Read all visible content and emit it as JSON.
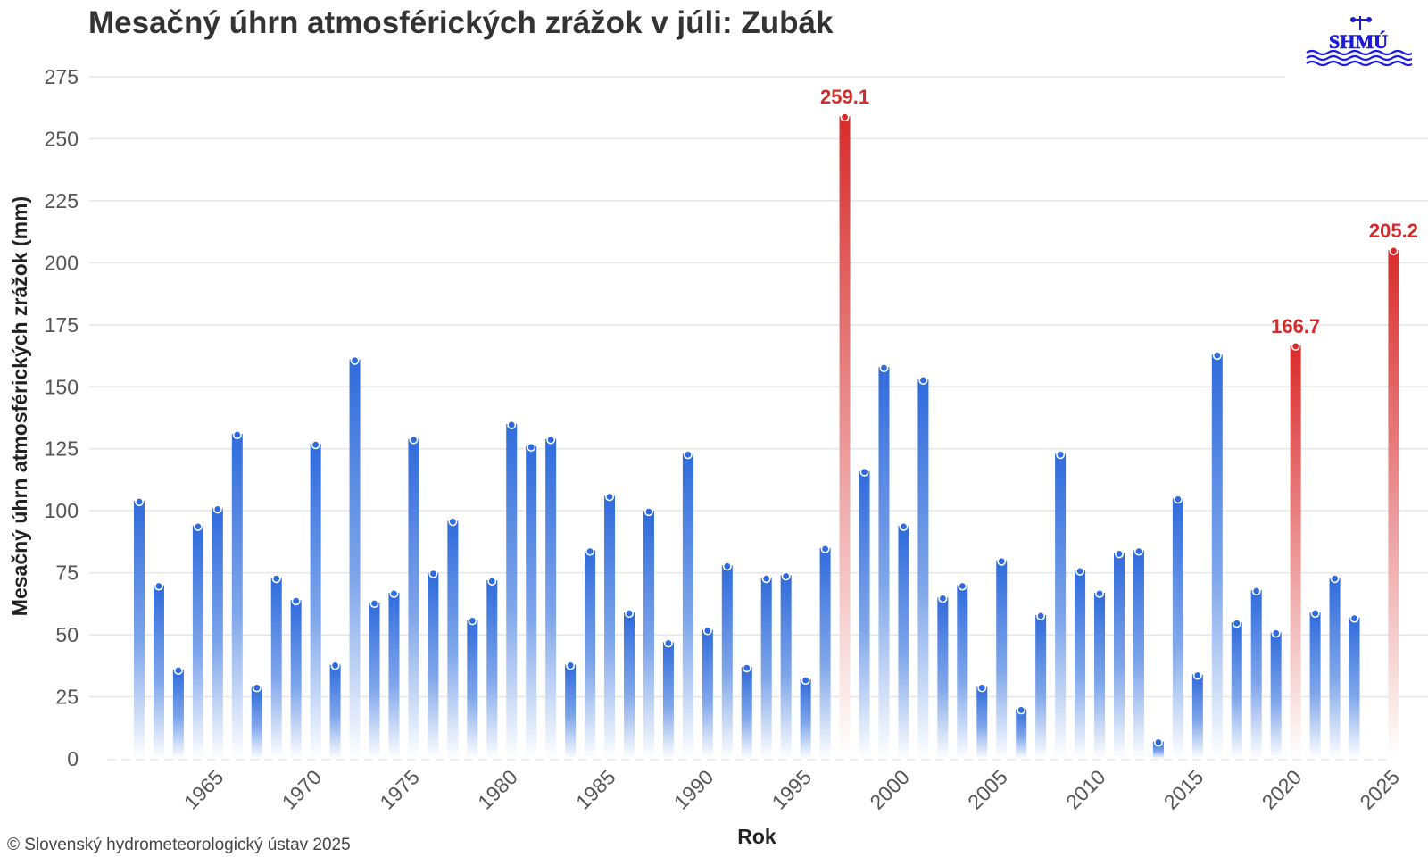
{
  "header": {
    "title": "Mesačný úhrn atmosférických zrážok v júli: Zubák",
    "logo_text": "SHMÚ"
  },
  "footer": {
    "copyright": "© Slovenský hydrometeorologický ústav 2025"
  },
  "colors": {
    "normal_bar": "#2f6bdc",
    "highlight_bar": "#d92b2b",
    "highlight_label": "#d62a2a",
    "logo": "#1a1adb"
  },
  "chart_data": {
    "type": "bar",
    "title": "Mesačný úhrn atmosférických zrážok v júli: Zubák",
    "xlabel": "Rok",
    "ylabel": "Mesačný úhrn atmosférických zrážok (mm)",
    "ylim": [
      0,
      275
    ],
    "yticks": [
      0,
      25,
      50,
      75,
      100,
      125,
      150,
      175,
      200,
      225,
      250,
      275
    ],
    "xticks": [
      1965,
      1970,
      1975,
      1980,
      1985,
      1990,
      1995,
      2000,
      2005,
      2010,
      2015,
      2020,
      2025
    ],
    "grid": true,
    "legend": "none",
    "years": [
      1961,
      1962,
      1963,
      1964,
      1965,
      1966,
      1967,
      1968,
      1969,
      1970,
      1971,
      1972,
      1973,
      1974,
      1975,
      1976,
      1977,
      1978,
      1979,
      1980,
      1981,
      1982,
      1983,
      1984,
      1985,
      1986,
      1987,
      1988,
      1989,
      1990,
      1991,
      1992,
      1993,
      1994,
      1995,
      1996,
      1997,
      1998,
      1999,
      2000,
      2001,
      2002,
      2003,
      2004,
      2005,
      2006,
      2007,
      2008,
      2009,
      2010,
      2011,
      2012,
      2013,
      2014,
      2015,
      2016,
      2017,
      2018,
      2019,
      2020,
      2021,
      2022,
      2023,
      2024,
      2025
    ],
    "values": [
      104,
      70,
      36,
      94,
      101,
      131,
      29,
      73,
      64,
      127,
      38,
      161,
      63,
      67,
      129,
      75,
      96,
      56,
      72,
      135,
      126,
      129,
      38,
      84,
      106,
      59,
      100,
      47,
      123,
      52,
      78,
      37,
      73,
      74,
      32,
      85,
      259.1,
      116,
      158,
      94,
      153,
      65,
      70,
      29,
      80,
      20,
      58,
      123,
      76,
      67,
      83,
      84,
      7,
      105,
      34,
      163,
      55,
      68,
      51,
      166.7,
      59,
      73,
      57,
      null,
      205.2
    ],
    "highlighted": [
      {
        "year": 1997,
        "value": 259.1,
        "label": "259.1"
      },
      {
        "year": 2020,
        "value": 166.7,
        "label": "166.7"
      },
      {
        "year": 2025,
        "value": 205.2,
        "label": "205.2"
      }
    ]
  }
}
